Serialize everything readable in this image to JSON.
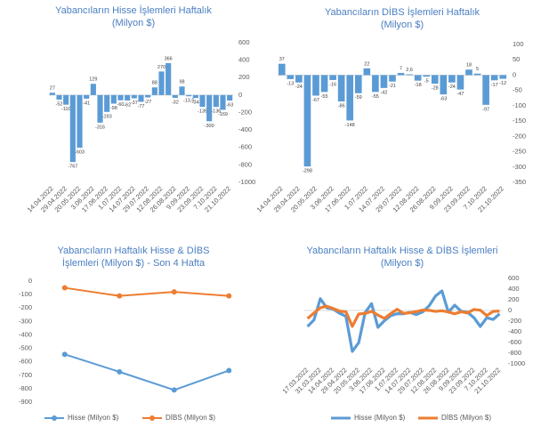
{
  "chart_data": [
    {
      "type": "bar",
      "title": [
        "Yabancıların Hisse İşlemleri Haftalık",
        "(Milyon $)"
      ],
      "color": "#5b9bd5",
      "categories": [
        "14.04.2022",
        null,
        "29.04.2022",
        null,
        "20.05.2022",
        null,
        "3.06.2022",
        null,
        "17.06.2022",
        null,
        "1.07.2022",
        null,
        "14.07.2022",
        null,
        "29.07.2022",
        null,
        "12.08.2022",
        null,
        "26.08.2022",
        null,
        "9.09.2022",
        null,
        "23.09.2022",
        null,
        "7.10.2022",
        null,
        "21.10.2022"
      ],
      "values": [
        27,
        -52,
        -110,
        -767,
        -603,
        -41,
        129,
        -316,
        -193,
        -98,
        -60,
        -62,
        -37,
        -77,
        -27,
        88,
        270,
        366,
        -32,
        98,
        -13.5,
        -34,
        -135,
        -300,
        -136,
        -169,
        -63
      ],
      "value_labels": [
        "27",
        "-52",
        "-110",
        "-767",
        "-603",
        "-41",
        "129",
        "-316",
        "-193",
        "-98",
        "-60",
        "-62",
        "-37",
        "-77",
        "-27",
        "88",
        "270",
        "366",
        "-32",
        "98",
        "-13,5",
        "-34",
        "-135",
        "-300",
        "-136",
        "-169",
        "-63"
      ],
      "ylim": [
        -1000,
        600
      ],
      "yticks": [
        -1000,
        -800,
        -600,
        -400,
        -200,
        0,
        200,
        400,
        600
      ],
      "y_axis_side": "right"
    },
    {
      "type": "bar",
      "title": [
        "Yabancıların  DİBS İşlemleri Haftalık",
        "(Milyon $)"
      ],
      "color": "#5b9bd5",
      "categories": [
        "14.04.2022",
        null,
        "29.04.2022",
        null,
        "20.05.2022",
        null,
        "3.06.2022",
        null,
        "17.06.2022",
        null,
        "1.07.2022",
        null,
        "14.07.2022",
        null,
        "29.07.2022",
        null,
        "12.08.2022",
        null,
        "26.08.2022",
        null,
        "9.09.2022",
        null,
        "23.09.2022",
        null,
        "7.10.2022",
        null,
        "21.10.2022"
      ],
      "values": [
        37,
        -13,
        -24,
        -298,
        -67,
        -55,
        -16,
        -86,
        -148,
        -59,
        22,
        -55,
        -42,
        -21,
        7,
        2.6,
        -18,
        -5,
        -28,
        -63,
        -24,
        -47,
        18,
        5,
        -97,
        -17,
        -12
      ],
      "value_labels": [
        "37",
        "-13",
        "-24",
        "-298",
        "-67",
        "-55",
        "-16",
        "-86",
        "-148",
        "-59",
        "22",
        "-55",
        "-42",
        "-21",
        "7",
        "2,6",
        "-18",
        "-5",
        "-28",
        "-63",
        "-24",
        "-47",
        "18",
        "5",
        "-97",
        "-17",
        "-12"
      ],
      "ylim": [
        -350,
        100
      ],
      "yticks": [
        -350,
        -300,
        -250,
        -200,
        -150,
        -100,
        -50,
        0,
        50,
        100
      ],
      "y_axis_side": "right"
    },
    {
      "type": "line",
      "title": [
        "Yabancıların  Haftalık Hisse & DİBS",
        "İşlemleri (Milyon $) - Son 4 Hafta"
      ],
      "markers": true,
      "categories": [
        null,
        null,
        null,
        null
      ],
      "series": [
        {
          "name": "Hisse (Milyon $)",
          "color": "#5b9bd5",
          "values": [
            -545,
            -675,
            -810,
            -665
          ]
        },
        {
          "name": "DİBS (Milyon $)",
          "color": "#ed7d31",
          "values": [
            -50,
            -110,
            -80,
            -110
          ]
        }
      ],
      "ylim": [
        -900,
        0
      ],
      "yticks": [
        -900,
        -800,
        -700,
        -600,
        -500,
        -400,
        -300,
        -200,
        -100,
        0
      ],
      "y_axis_side": "left",
      "legend": "bottom"
    },
    {
      "type": "line",
      "title": [
        "Yabancıların Haftalık Hisse & DİBS İşlemleri",
        "(Milyon $)"
      ],
      "markers": false,
      "categories": [
        "17.03.2022",
        null,
        "31.03.2022",
        null,
        "14.04.2022",
        null,
        "29.04.2022",
        null,
        "20.05.2022",
        null,
        "3.06.2022",
        null,
        "17.06.2022",
        null,
        "1.07.2022",
        null,
        "14.07.2022",
        null,
        "29.07.2022",
        null,
        "12.08.2022",
        null,
        "26.08.2022",
        null,
        "9.09.2022",
        null,
        "23.09.2022",
        null,
        "7.10.2022",
        null,
        "21.10.2022"
      ],
      "series": [
        {
          "name": "Hisse (Milyon $)",
          "color": "#5b9bd5",
          "values": [
            -300,
            -180,
            220,
            50,
            27,
            -52,
            -110,
            -767,
            -603,
            -41,
            129,
            -316,
            -193,
            -98,
            -60,
            -62,
            -37,
            -77,
            -27,
            88,
            270,
            366,
            -32,
            98,
            -13.5,
            -34,
            -135,
            -300,
            -136,
            -169,
            -63
          ]
        },
        {
          "name": "DİBS (Milyon $)",
          "color": "#ed7d31",
          "values": [
            -150,
            -50,
            50,
            80,
            37,
            -13,
            -24,
            -298,
            -67,
            -55,
            -16,
            -86,
            -148,
            -59,
            22,
            -55,
            -42,
            -21,
            7,
            2.6,
            -18,
            -5,
            -28,
            -63,
            -24,
            -47,
            18,
            5,
            -97,
            -17,
            -12
          ]
        }
      ],
      "ylim": [
        -1000,
        600
      ],
      "yticks": [
        -1000,
        -800,
        -600,
        -400,
        -200,
        0,
        200,
        400,
        600
      ],
      "y_axis_side": "right",
      "legend": "bottom"
    }
  ]
}
